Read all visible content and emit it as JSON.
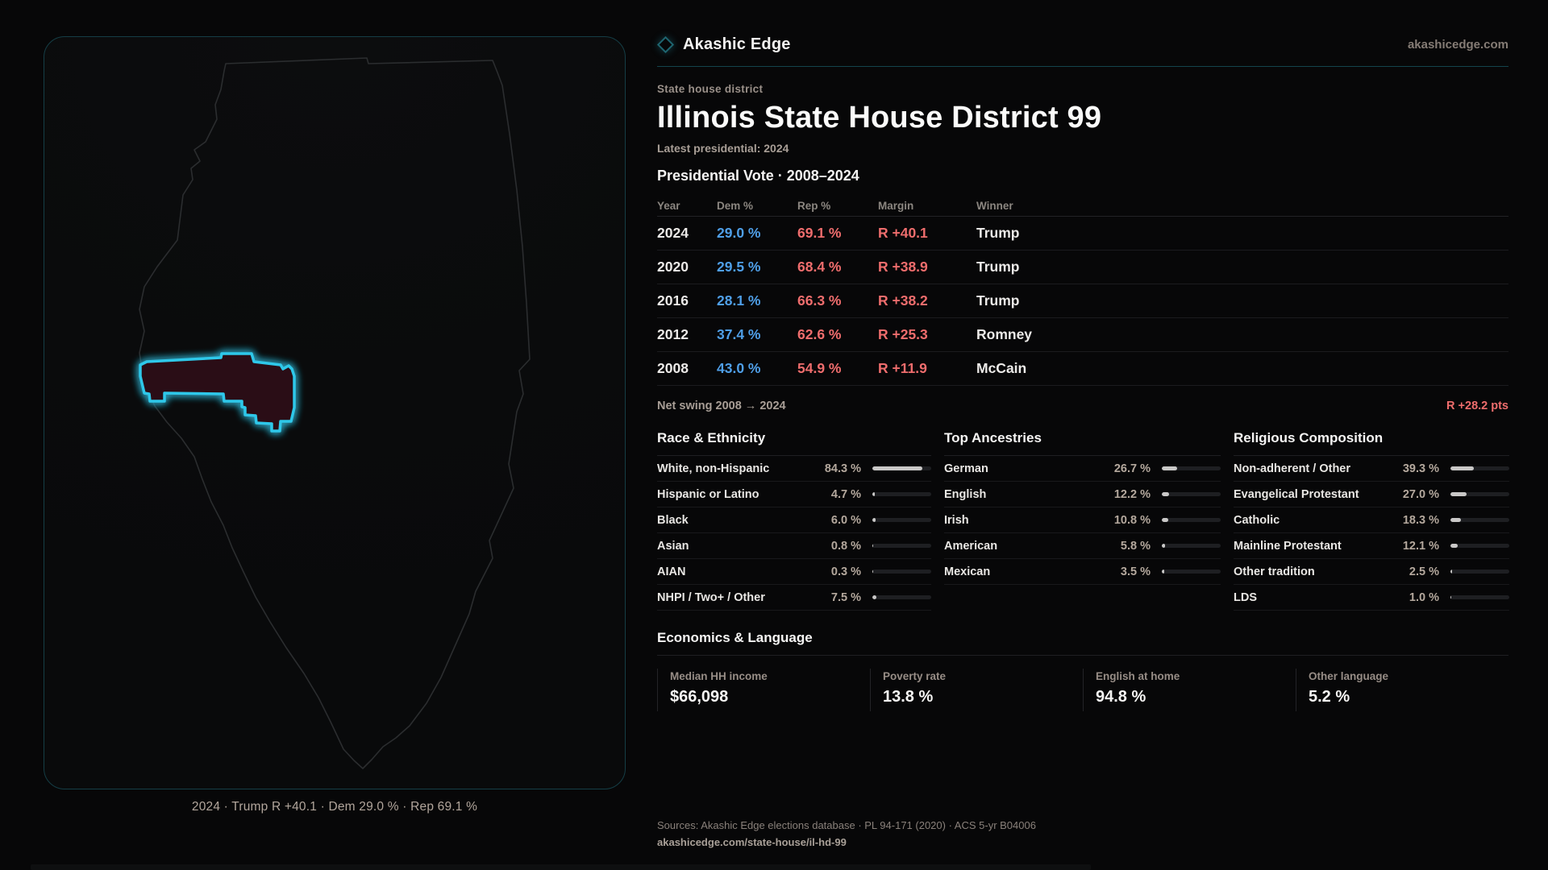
{
  "brand": {
    "name": "Akashic Edge",
    "site": "akashicedge.com",
    "logo_icon": "diamond-icon"
  },
  "header": {
    "kicker": "State house district",
    "title": "Illinois State House District 99",
    "latest": "Latest presidential: 2024"
  },
  "vote_table": {
    "title": "Presidential Vote · 2008–2024",
    "columns": [
      "Year",
      "Dem %",
      "Rep %",
      "Margin",
      "Winner"
    ],
    "rows": [
      {
        "year": "2024",
        "dem": "29.0 %",
        "rep": "69.1 %",
        "margin": "R +40.1",
        "winner": "Trump"
      },
      {
        "year": "2020",
        "dem": "29.5 %",
        "rep": "68.4 %",
        "margin": "R +38.9",
        "winner": "Trump"
      },
      {
        "year": "2016",
        "dem": "28.1 %",
        "rep": "66.3 %",
        "margin": "R +38.2",
        "winner": "Trump"
      },
      {
        "year": "2012",
        "dem": "37.4 %",
        "rep": "62.6 %",
        "margin": "R +25.3",
        "winner": "Romney"
      },
      {
        "year": "2008",
        "dem": "43.0 %",
        "rep": "54.9 %",
        "margin": "R +11.9",
        "winner": "McCain"
      }
    ],
    "net_swing_label": "Net swing 2008 → 2024",
    "net_swing_value": "R +28.2 pts"
  },
  "demographics": [
    {
      "title": "Race & Ethnicity",
      "rows": [
        {
          "label": "White, non-Hispanic",
          "value": "84.3 %",
          "pct": 84.3
        },
        {
          "label": "Hispanic or Latino",
          "value": "4.7 %",
          "pct": 4.7
        },
        {
          "label": "Black",
          "value": "6.0 %",
          "pct": 6.0
        },
        {
          "label": "Asian",
          "value": "0.8 %",
          "pct": 0.8
        },
        {
          "label": "AIAN",
          "value": "0.3 %",
          "pct": 0.3
        },
        {
          "label": "NHPI / Two+ / Other",
          "value": "7.5 %",
          "pct": 7.5
        }
      ]
    },
    {
      "title": "Top Ancestries",
      "rows": [
        {
          "label": "German",
          "value": "26.7 %",
          "pct": 26.7
        },
        {
          "label": "English",
          "value": "12.2 %",
          "pct": 12.2
        },
        {
          "label": "Irish",
          "value": "10.8 %",
          "pct": 10.8
        },
        {
          "label": "American",
          "value": "5.8 %",
          "pct": 5.8
        },
        {
          "label": "Mexican",
          "value": "3.5 %",
          "pct": 3.5
        }
      ]
    },
    {
      "title": "Religious Composition",
      "rows": [
        {
          "label": "Non-adherent / Other",
          "value": "39.3 %",
          "pct": 39.3
        },
        {
          "label": "Evangelical Protestant",
          "value": "27.0 %",
          "pct": 27.0
        },
        {
          "label": "Catholic",
          "value": "18.3 %",
          "pct": 18.3
        },
        {
          "label": "Mainline Protestant",
          "value": "12.1 %",
          "pct": 12.1
        },
        {
          "label": "Other tradition",
          "value": "2.5 %",
          "pct": 2.5
        },
        {
          "label": "LDS",
          "value": "1.0 %",
          "pct": 1.0
        }
      ]
    }
  ],
  "economics": {
    "title": "Economics & Language",
    "stats": [
      {
        "label": "Median HH income",
        "value": "$66,098"
      },
      {
        "label": "Poverty rate",
        "value": "13.8 %"
      },
      {
        "label": "English at home",
        "value": "94.8 %"
      },
      {
        "label": "Other language",
        "value": "5.2 %"
      }
    ]
  },
  "map": {
    "caption": "2024 · Trump R +40.1 · Dem 29.0 % · Rep 69.1 %"
  },
  "footer": {
    "sources": "Sources: Akashic Edge elections database · PL 94-171 (2020) · ACS 5-yr B04006",
    "permalink": "akashicedge.com/state-house/il-hd-99"
  },
  "colors": {
    "dem": "#4f9fe8",
    "rep": "#ef6d6d",
    "accent": "#2fc8ea",
    "district_fill": "#2a1114",
    "bar_fill": "#c9c8c7"
  },
  "chart_data": [
    {
      "type": "table",
      "title": "Presidential Vote · 2008–2024",
      "columns": [
        "Year",
        "Dem %",
        "Rep %",
        "Margin",
        "Winner"
      ],
      "rows": [
        [
          2024,
          29.0,
          69.1,
          "R +40.1",
          "Trump"
        ],
        [
          2020,
          29.5,
          68.4,
          "R +38.9",
          "Trump"
        ],
        [
          2016,
          28.1,
          66.3,
          "R +38.2",
          "Trump"
        ],
        [
          2012,
          37.4,
          62.6,
          "R +25.3",
          "Romney"
        ],
        [
          2008,
          43.0,
          54.9,
          "R +11.9",
          "McCain"
        ]
      ],
      "annotations": [
        "Net swing 2008 → 2024: R +28.2 pts"
      ]
    },
    {
      "type": "bar",
      "title": "Race & Ethnicity",
      "categories": [
        "White, non-Hispanic",
        "Hispanic or Latino",
        "Black",
        "Asian",
        "AIAN",
        "NHPI / Two+ / Other"
      ],
      "values": [
        84.3,
        4.7,
        6.0,
        0.8,
        0.3,
        7.5
      ],
      "xlabel": "",
      "ylabel": "%",
      "xlim": [
        0,
        100
      ]
    },
    {
      "type": "bar",
      "title": "Top Ancestries",
      "categories": [
        "German",
        "English",
        "Irish",
        "American",
        "Mexican"
      ],
      "values": [
        26.7,
        12.2,
        10.8,
        5.8,
        3.5
      ],
      "xlabel": "",
      "ylabel": "%",
      "xlim": [
        0,
        100
      ]
    },
    {
      "type": "bar",
      "title": "Religious Composition",
      "categories": [
        "Non-adherent / Other",
        "Evangelical Protestant",
        "Catholic",
        "Mainline Protestant",
        "Other tradition",
        "LDS"
      ],
      "values": [
        39.3,
        27.0,
        18.3,
        12.1,
        2.5,
        1.0
      ],
      "xlabel": "",
      "ylabel": "%",
      "xlim": [
        0,
        100
      ]
    },
    {
      "type": "table",
      "title": "Economics & Language",
      "columns": [
        "Median HH income",
        "Poverty rate",
        "English at home",
        "Other language"
      ],
      "rows": [
        [
          "$66,098",
          "13.8 %",
          "94.8 %",
          "5.2 %"
        ]
      ]
    }
  ]
}
